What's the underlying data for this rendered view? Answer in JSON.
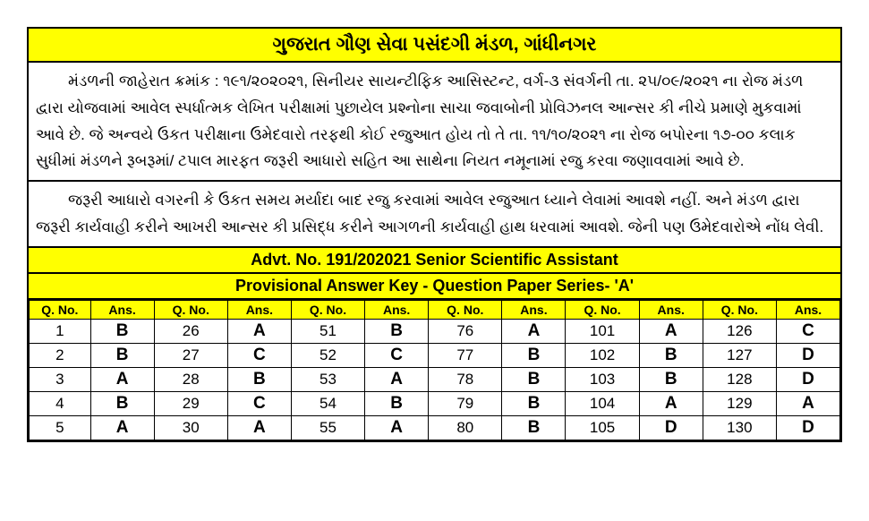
{
  "header": {
    "title": "ગુજરાત ગૌણ સેવા પસંદગી મંડળ, ગાંધીનગર"
  },
  "paragraphs": {
    "p1": "મંડળની જાહેરાત ક્રમાંક : ૧૯૧/૨૦૨૦૨૧, સિનીયર સાયન્ટીફિક આસિસ્ટન્ટ, વર્ગ-૩ સંવર્ગની તા. ૨૫/૦૯/૨૦૨૧ ના રોજ મંડળ દ્વારા યોજવામાં આવેલ સ્પર્ધાત્મક લેખિત પરીક્ષામાં પુછાયેલ પ્રશ્નોના સાચા જવાબોની પ્રોવિઝનલ આન્સર કી નીચે પ્રમાણે મુકવામાં આવે છે. જે અન્વયે ઉકત પરીક્ષાના ઉમેદવારો તરફથી કોઈ રજુઆત હોય તો તે તા. ૧૧/૧૦/૨૦૨૧ ના રોજ બપોરના ૧૭-૦૦ કલાક સુધીમાં મંડળને રૂબરૂમાં/ ટપાલ મારફત જરૂરી આધારો સહિત આ સાથેના નિયત નમૂનામાં રજુ કરવા જણાવવામાં આવે છે.",
    "p2": "જરૂરી આધારો વગરની કે ઉકત સમય મર્યાદા બાદ રજુ કરવામાં આવેલ રજુઆત ધ્યાને લેવામાં આવશે નહીં. અને મંડળ દ્વારા જરૂરી કાર્યવાહી કરીને આખરી આન્સર કી પ્રસિદ્ધ કરીને આગળની કાર્યવાહી હાથ ધરવામાં આવશે. જેની પણ ઉમેદવારોએ નોંધ લેવી."
  },
  "advt_bar": "Advt. No. 191/202021   Senior Scientific Assistant",
  "key_bar": "Provisional Answer Key - Question Paper Series-  'A'",
  "table": {
    "headers": [
      "Q. No.",
      "Ans.",
      "Q. No.",
      "Ans.",
      "Q. No.",
      "Ans.",
      "Q. No.",
      "Ans.",
      "Q. No.",
      "Ans.",
      "Q. No.",
      "Ans."
    ],
    "rows": [
      [
        "1",
        "B",
        "26",
        "A",
        "51",
        "B",
        "76",
        "A",
        "101",
        "A",
        "126",
        "C"
      ],
      [
        "2",
        "B",
        "27",
        "C",
        "52",
        "C",
        "77",
        "B",
        "102",
        "B",
        "127",
        "D"
      ],
      [
        "3",
        "A",
        "28",
        "B",
        "53",
        "A",
        "78",
        "B",
        "103",
        "B",
        "128",
        "D"
      ],
      [
        "4",
        "B",
        "29",
        "C",
        "54",
        "B",
        "79",
        "B",
        "104",
        "A",
        "129",
        "A"
      ],
      [
        "5",
        "A",
        "30",
        "A",
        "55",
        "A",
        "80",
        "B",
        "105",
        "D",
        "130",
        "D"
      ]
    ]
  },
  "colors": {
    "highlight": "#ffff00",
    "border": "#000000",
    "background": "#ffffff",
    "text": "#000000"
  }
}
